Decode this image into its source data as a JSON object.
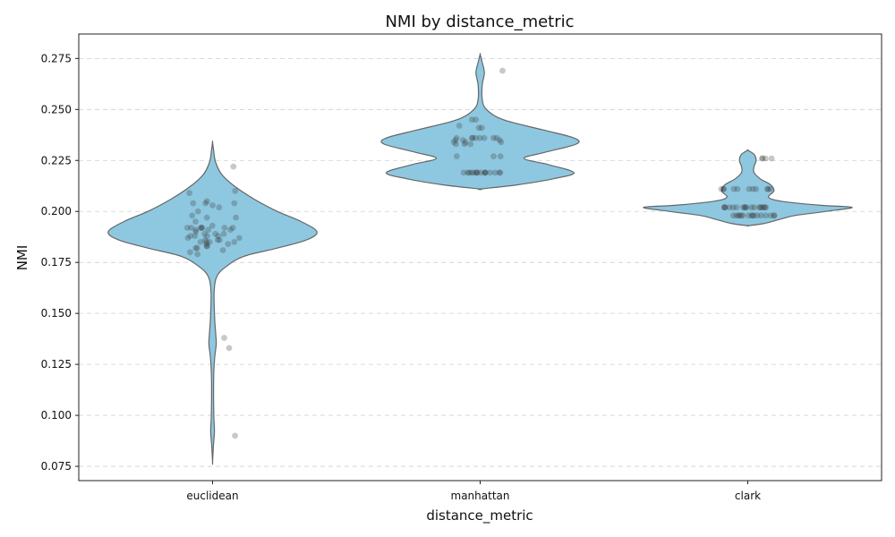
{
  "chart_data": {
    "type": "violin",
    "title": "NMI by distance_metric",
    "xlabel": "distance_metric",
    "ylabel": "NMI",
    "ylim": [
      0.068,
      0.287
    ],
    "yticks": [
      0.075,
      0.1,
      0.125,
      0.15,
      0.175,
      0.2,
      0.225,
      0.25,
      0.275
    ],
    "ytick_labels": [
      "0.075",
      "0.100",
      "0.125",
      "0.150",
      "0.175",
      "0.200",
      "0.225",
      "0.250",
      "0.275"
    ],
    "grid": "y-dashed",
    "categories": [
      "euclidean",
      "manhattan",
      "clark"
    ],
    "colors": {
      "violin_fill": "#8ec8e0",
      "violin_edge": "#666666",
      "points": "#3b3b3b"
    },
    "groups": [
      {
        "name": "euclidean",
        "values": [
          0.222,
          0.21,
          0.209,
          0.205,
          0.204,
          0.204,
          0.204,
          0.203,
          0.202,
          0.2,
          0.198,
          0.197,
          0.197,
          0.195,
          0.193,
          0.192,
          0.192,
          0.192,
          0.192,
          0.192,
          0.192,
          0.192,
          0.191,
          0.191,
          0.191,
          0.19,
          0.189,
          0.189,
          0.189,
          0.188,
          0.188,
          0.188,
          0.188,
          0.187,
          0.187,
          0.186,
          0.186,
          0.186,
          0.185,
          0.185,
          0.185,
          0.185,
          0.184,
          0.184,
          0.183,
          0.183,
          0.182,
          0.182,
          0.181,
          0.18,
          0.179,
          0.138,
          0.133,
          0.09
        ],
        "violin_profile": [
          [
            0.234,
            0
          ],
          [
            0.23,
            0.01
          ],
          [
            0.224,
            0.03
          ],
          [
            0.218,
            0.09
          ],
          [
            0.212,
            0.22
          ],
          [
            0.206,
            0.4
          ],
          [
            0.2,
            0.62
          ],
          [
            0.195,
            0.85
          ],
          [
            0.19,
            1.0
          ],
          [
            0.186,
            0.9
          ],
          [
            0.182,
            0.62
          ],
          [
            0.178,
            0.3
          ],
          [
            0.173,
            0.13
          ],
          [
            0.168,
            0.04
          ],
          [
            0.16,
            0.015
          ],
          [
            0.148,
            0.02
          ],
          [
            0.14,
            0.03
          ],
          [
            0.135,
            0.035
          ],
          [
            0.128,
            0.02
          ],
          [
            0.118,
            0.01
          ],
          [
            0.1,
            0.012
          ],
          [
            0.092,
            0.018
          ],
          [
            0.085,
            0.008
          ],
          [
            0.077,
            0
          ]
        ]
      },
      {
        "name": "manhattan",
        "values": [
          0.269,
          0.245,
          0.245,
          0.242,
          0.241,
          0.241,
          0.236,
          0.236,
          0.236,
          0.236,
          0.236,
          0.236,
          0.236,
          0.236,
          0.235,
          0.235,
          0.235,
          0.234,
          0.234,
          0.234,
          0.233,
          0.233,
          0.233,
          0.227,
          0.227,
          0.227,
          0.219,
          0.219,
          0.219,
          0.219,
          0.219,
          0.219,
          0.219,
          0.219,
          0.219,
          0.219,
          0.219,
          0.219,
          0.219,
          0.219,
          0.219,
          0.219
        ],
        "violin_profile": [
          [
            0.277,
            0
          ],
          [
            0.273,
            0.02
          ],
          [
            0.268,
            0.04
          ],
          [
            0.262,
            0.02
          ],
          [
            0.255,
            0.02
          ],
          [
            0.25,
            0.06
          ],
          [
            0.245,
            0.22
          ],
          [
            0.24,
            0.6
          ],
          [
            0.236,
            0.9
          ],
          [
            0.233,
            0.92
          ],
          [
            0.229,
            0.62
          ],
          [
            0.226,
            0.42
          ],
          [
            0.223,
            0.65
          ],
          [
            0.219,
            0.9
          ],
          [
            0.216,
            0.7
          ],
          [
            0.213,
            0.35
          ],
          [
            0.211,
            0
          ]
        ]
      },
      {
        "name": "clark",
        "values": [
          0.226,
          0.226,
          0.226,
          0.226,
          0.211,
          0.211,
          0.211,
          0.211,
          0.211,
          0.211,
          0.211,
          0.211,
          0.211,
          0.211,
          0.211,
          0.202,
          0.202,
          0.202,
          0.202,
          0.202,
          0.202,
          0.202,
          0.202,
          0.202,
          0.202,
          0.202,
          0.202,
          0.202,
          0.202,
          0.202,
          0.202,
          0.202,
          0.202,
          0.198,
          0.198,
          0.198,
          0.198,
          0.198,
          0.198,
          0.198,
          0.198,
          0.198,
          0.198,
          0.198,
          0.198,
          0.198,
          0.198,
          0.198,
          0.198
        ],
        "violin_profile": [
          [
            0.23,
            0
          ],
          [
            0.228,
            0.06
          ],
          [
            0.225,
            0.08
          ],
          [
            0.222,
            0.06
          ],
          [
            0.219,
            0.06
          ],
          [
            0.216,
            0.12
          ],
          [
            0.213,
            0.22
          ],
          [
            0.21,
            0.25
          ],
          [
            0.207,
            0.2
          ],
          [
            0.205,
            0.32
          ],
          [
            0.203,
            0.7
          ],
          [
            0.202,
            1.0
          ],
          [
            0.2,
            0.75
          ],
          [
            0.198,
            0.45
          ],
          [
            0.196,
            0.3
          ],
          [
            0.194,
            0.15
          ],
          [
            0.193,
            0
          ]
        ]
      }
    ]
  }
}
